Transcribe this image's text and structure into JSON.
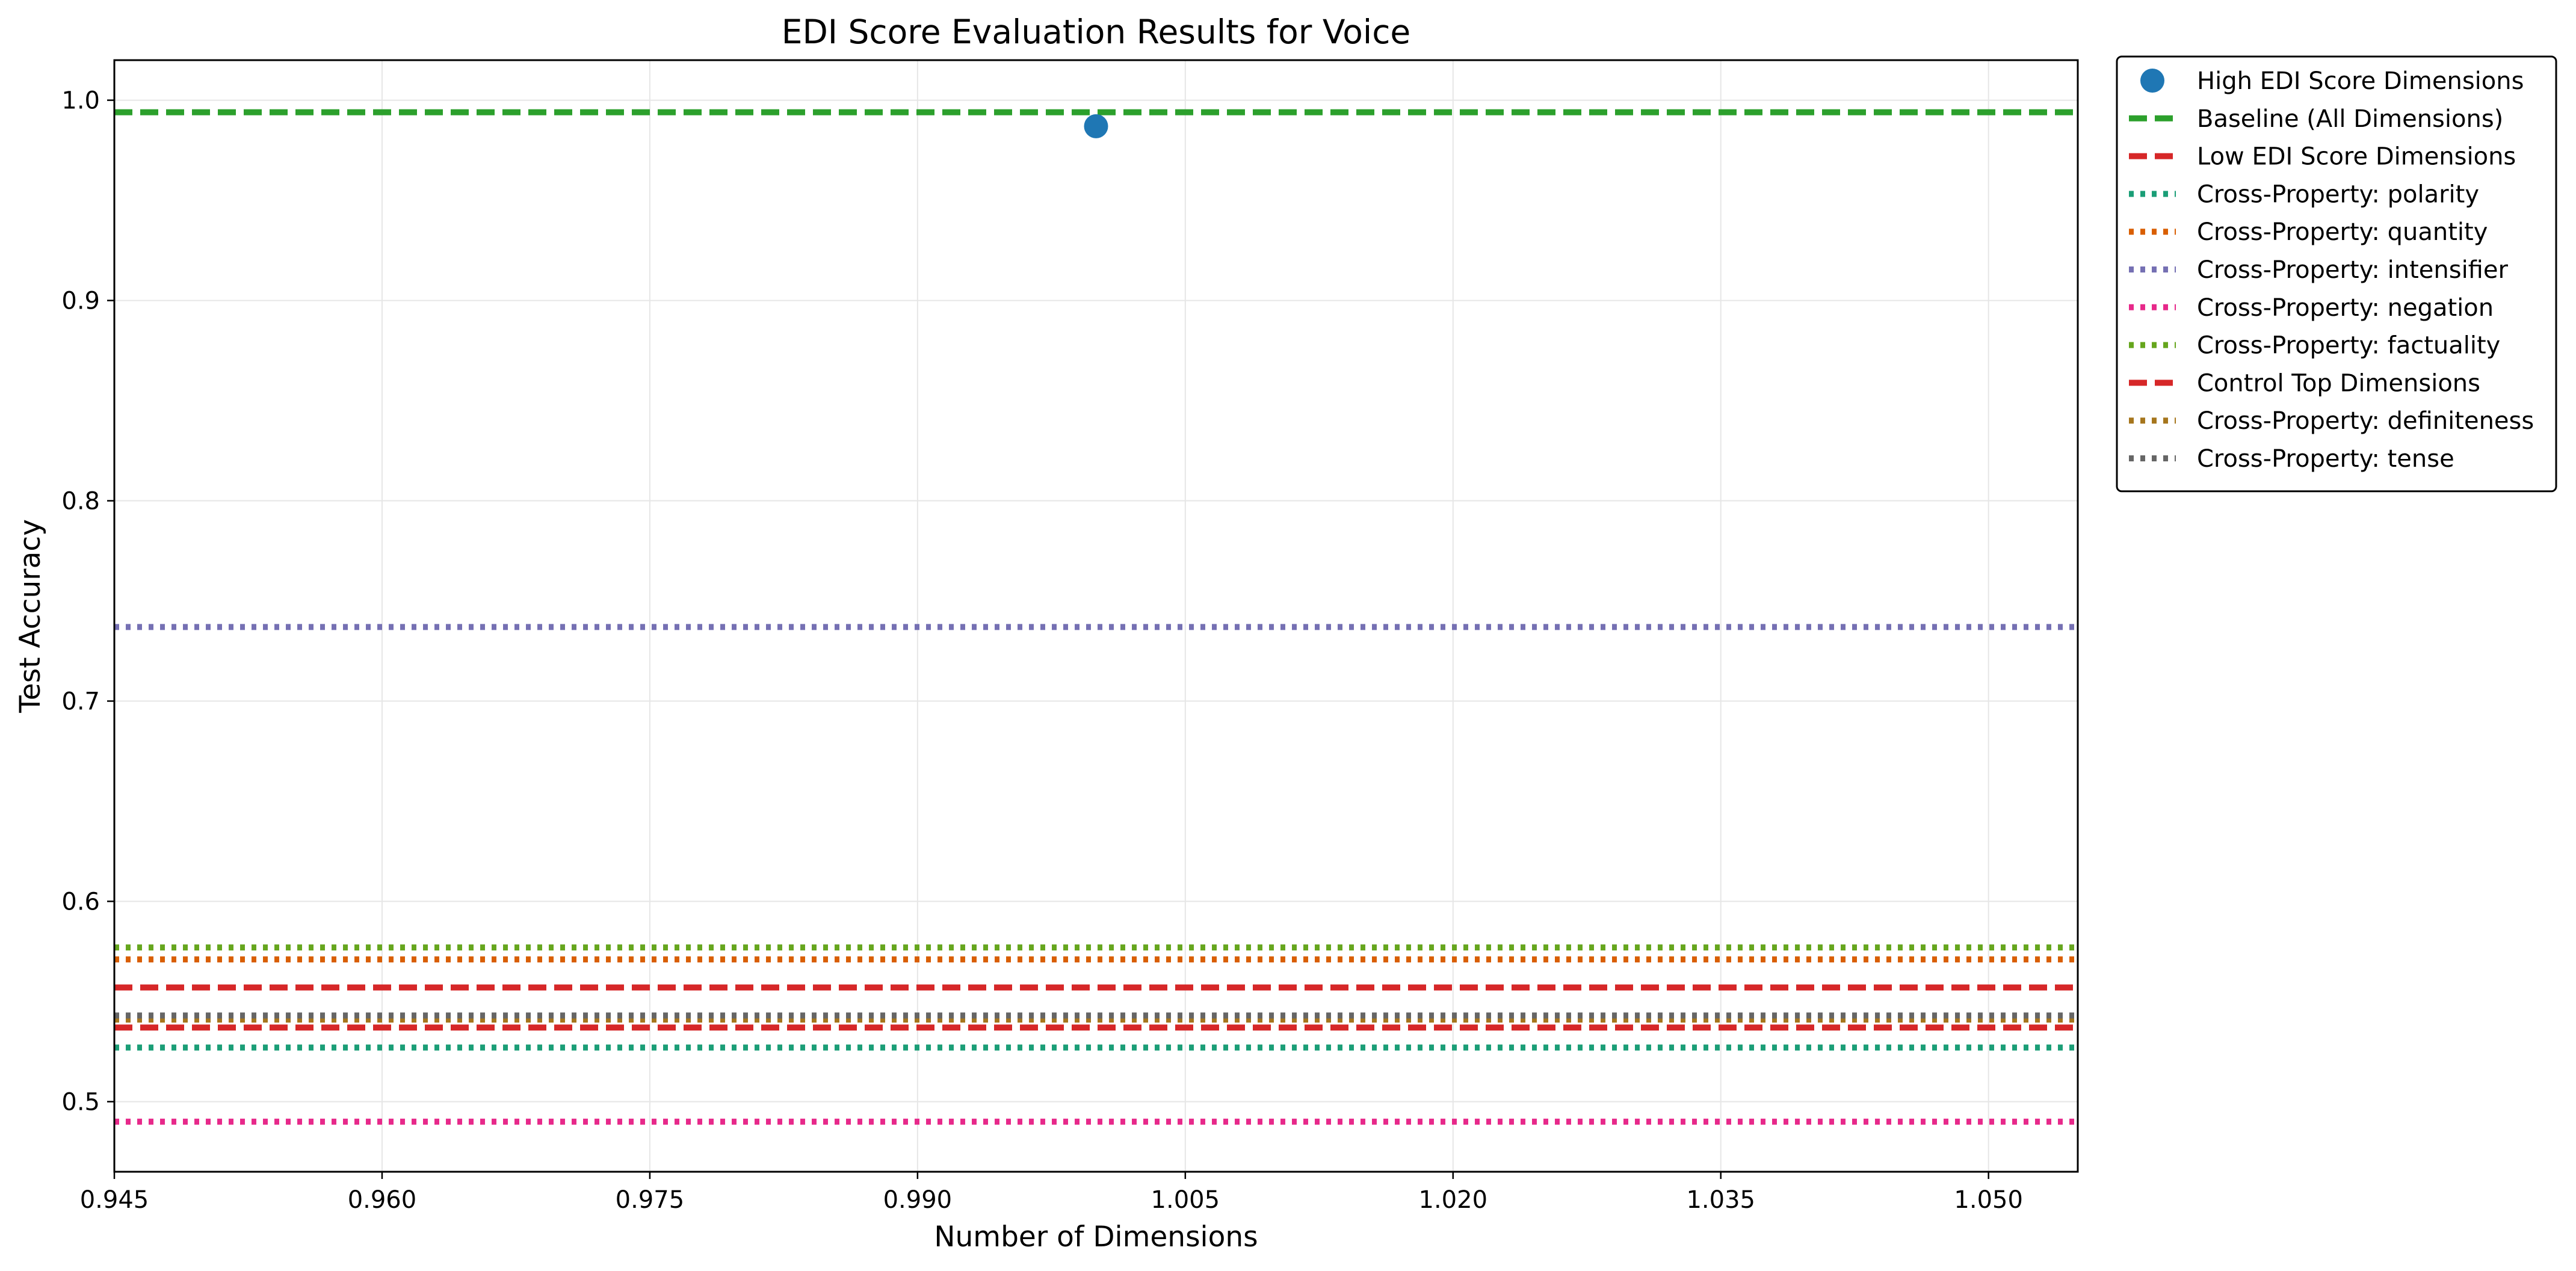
{
  "chart_data": {
    "type": "line",
    "title": "EDI Score Evaluation Results for Voice",
    "xlabel": "Number of Dimensions",
    "ylabel": "Test Accuracy",
    "xlim": [
      0.945,
      1.055
    ],
    "ylim": [
      0.465,
      1.02
    ],
    "xticks": [
      "0.945",
      "0.960",
      "0.975",
      "0.990",
      "1.005",
      "1.020",
      "1.035",
      "1.050"
    ],
    "yticks": [
      "0.5",
      "0.6",
      "0.7",
      "0.8",
      "0.9",
      "1.0"
    ],
    "grid": true,
    "legend_position": "outside right, top",
    "series": [
      {
        "name": "High EDI Score Dimensions",
        "kind": "point",
        "x": [
          1
        ],
        "y": [
          0.987
        ],
        "color": "#1f77b4"
      },
      {
        "name": "Baseline (All Dimensions)",
        "kind": "hline",
        "style": "dashed",
        "y": 0.994,
        "color": "#2ca02c"
      },
      {
        "name": "Low EDI Score Dimensions",
        "kind": "hline",
        "style": "dashed",
        "y": 0.557,
        "color": "#d62728"
      },
      {
        "name": "Cross-Property: polarity",
        "kind": "hline",
        "style": "dotted",
        "y": 0.527,
        "color": "#1b9e77"
      },
      {
        "name": "Cross-Property: quantity",
        "kind": "hline",
        "style": "dotted",
        "y": 0.571,
        "color": "#d95f02"
      },
      {
        "name": "Cross-Property: intensifier",
        "kind": "hline",
        "style": "dotted",
        "y": 0.737,
        "color": "#7570b3"
      },
      {
        "name": "Cross-Property: negation",
        "kind": "hline",
        "style": "dotted",
        "y": 0.49,
        "color": "#e7298a"
      },
      {
        "name": "Cross-Property: factuality",
        "kind": "hline",
        "style": "dotted",
        "y": 0.577,
        "color": "#66a61e"
      },
      {
        "name": "Control Top Dimensions",
        "kind": "hline",
        "style": "dashed",
        "y": 0.537,
        "color": "#d62728"
      },
      {
        "name": "Cross-Property: definiteness",
        "kind": "hline",
        "style": "dotted",
        "y": 0.541,
        "color": "#a6761d"
      },
      {
        "name": "Cross-Property: tense",
        "kind": "hline",
        "style": "dotted",
        "y": 0.543,
        "color": "#666666"
      }
    ]
  }
}
